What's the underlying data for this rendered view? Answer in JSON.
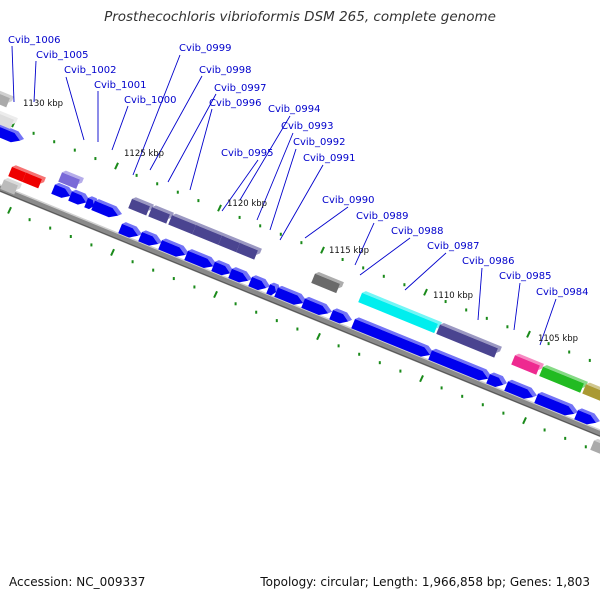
{
  "title": "Prosthecochloris vibrioformis DSM 265, complete genome",
  "footer": {
    "accession": "Accession: NC_009337",
    "summary": "Topology: circular; Length: 1,966,858 bp; Genes: 1,803"
  },
  "colors": {
    "forward_gene": "#0000ee",
    "reverse_gene": "#3c3c88",
    "backbone": "#888888",
    "label": "#0000cc",
    "leader_line": "#0000cc",
    "tick": "#1a8a1a"
  },
  "kbp_markers": [
    "1130 kbp",
    "1125 kbp",
    "1120 kbp",
    "1115 kbp",
    "1110 kbp",
    "1105 kbp"
  ],
  "gene_labels": [
    "Cvib_1006",
    "Cvib_1005",
    "Cvib_1002",
    "Cvib_1001",
    "Cvib_1000",
    "Cvib_0999",
    "Cvib_0998",
    "Cvib_0997",
    "Cvib_0996",
    "Cvib_0995",
    "Cvib_0994",
    "Cvib_0993",
    "Cvib_0992",
    "Cvib_0991",
    "Cvib_0990",
    "Cvib_0989",
    "Cvib_0988",
    "Cvib_0987",
    "Cvib_0986",
    "Cvib_0985",
    "Cvib_0984"
  ]
}
